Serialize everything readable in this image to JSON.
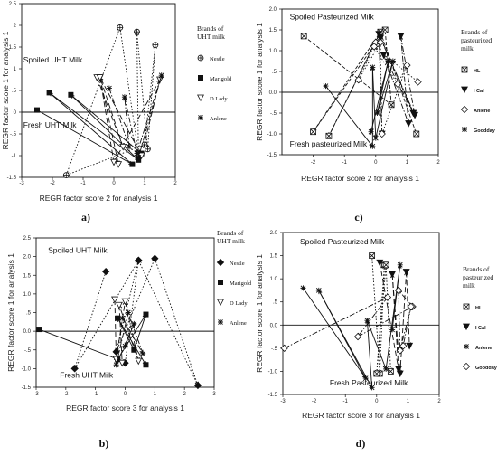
{
  "chart_data": [
    {
      "type": "scatter",
      "panel_label": "a)",
      "xlabel": "REGR factor score   2 for analysis   1",
      "ylabel": "REGR factor score   1 for analysis   1",
      "xlim": [
        -3,
        2
      ],
      "ylim": [
        -1.5,
        2.5
      ],
      "xticks": [
        -3,
        -2,
        -1,
        0,
        1,
        2
      ],
      "xtick_labels": [
        "-3",
        "-2",
        "-1",
        "0",
        "1",
        "2"
      ],
      "yticks": [
        -1.5,
        -1,
        -0.5,
        0,
        0.5,
        1,
        1.5,
        2,
        2.5
      ],
      "ytick_labels": [
        "-1.5",
        "-1",
        "-.5",
        "0",
        ".5",
        "1",
        "1.5",
        "2",
        "2.5"
      ],
      "annotations": [
        {
          "text": "Spoiled UHT Milk",
          "x": -2.95,
          "y": 1.15
        },
        {
          "text": "Fresh UHT Milk",
          "x": -2.95,
          "y": -0.35
        }
      ],
      "legend": {
        "title": "Brands of UHT milk",
        "title_lines": [
          "Brands of",
          "UHT milk"
        ],
        "entries": [
          {
            "name": "Nestle",
            "marker": "crossed-circle"
          },
          {
            "name": "Marigold",
            "marker": "filled-square"
          },
          {
            "name": "D Lady",
            "marker": "open-triangle-down"
          },
          {
            "name": "Anlene",
            "marker": "asterisk"
          }
        ]
      },
      "series": [
        {
          "name": "Nestle",
          "marker": "crossed-circle",
          "dash": "1.5,2",
          "points": [
            [
              0.2,
              1.95
            ],
            [
              0.8,
              -0.95
            ],
            [
              0.75,
              1.85
            ],
            [
              1.1,
              -0.85
            ],
            [
              1.35,
              1.55
            ],
            [
              1.0,
              -0.75
            ],
            [
              -1.55,
              -1.45
            ],
            [
              0.2,
              1.95
            ]
          ]
        },
        {
          "name": "Marigold",
          "marker": "filled-square",
          "dash": "none",
          "points": [
            [
              -2.5,
              0.05
            ],
            [
              0.6,
              -1.2
            ],
            [
              -2.1,
              0.45
            ],
            [
              0.8,
              -1.1
            ],
            [
              -1.4,
              0.4
            ],
            [
              0.9,
              -0.95
            ]
          ]
        },
        {
          "name": "D Lady",
          "marker": "open-triangle-down",
          "dash": "6,3",
          "points": [
            [
              -0.55,
              0.8
            ],
            [
              0.3,
              -0.8
            ],
            [
              -0.45,
              0.8
            ],
            [
              0.0,
              -1.15
            ],
            [
              1.5,
              0.75
            ],
            [
              0.9,
              -1.0
            ],
            [
              -0.45,
              0.8
            ],
            [
              0.15,
              -1.2
            ]
          ]
        },
        {
          "name": "Anlene",
          "marker": "asterisk",
          "dash": "6,2,1.5,2",
          "points": [
            [
              -0.15,
              0.55
            ],
            [
              0.5,
              -0.8
            ],
            [
              0.35,
              0.35
            ],
            [
              0.75,
              -0.95
            ],
            [
              1.55,
              0.85
            ],
            [
              0.8,
              -1.05
            ]
          ]
        }
      ]
    },
    {
      "type": "scatter",
      "panel_label": "c)",
      "xlabel": "REGR factor score   2 for analysis   1",
      "ylabel": "REGR factor score   1 for analysis   1",
      "xlim": [
        -3,
        2
      ],
      "ylim": [
        -1.5,
        2.0
      ],
      "xticks": [
        -2,
        -1,
        0,
        1,
        2
      ],
      "xtick_labels": [
        "-2",
        "-1",
        "0",
        "1",
        "2"
      ],
      "yticks": [
        -1.5,
        -1,
        -0.5,
        0,
        0.5,
        1,
        1.5,
        2
      ],
      "ytick_labels": [
        "-1.5",
        "-1.0",
        "-.5",
        "0.0",
        ".5",
        "1.0",
        "1.5",
        "2.0"
      ],
      "annotations": [
        {
          "text": "Spoiled Pasteurized Milk",
          "x": -2.75,
          "y": 1.75
        },
        {
          "text": "Fresh pasteurized Milk",
          "x": -2.75,
          "y": -1.3
        }
      ],
      "legend": {
        "title": "Brands of pasteurized milk",
        "title_lines": [
          "Brands of",
          "pasteurized",
          "milk"
        ],
        "entries": [
          {
            "name": "HL",
            "marker": "boxed-x"
          },
          {
            "name": "I Cal",
            "marker": "filled-triangle-down"
          },
          {
            "name": "Anlene",
            "marker": "open-diamond"
          },
          {
            "name": "Goodday",
            "marker": "asterisk"
          }
        ]
      },
      "series": [
        {
          "name": "HL",
          "marker": "boxed-x",
          "dash": "4,2",
          "points": [
            [
              -2.3,
              1.35
            ],
            [
              0.5,
              -0.3
            ],
            [
              0.3,
              1.5
            ],
            [
              -2.0,
              -0.95
            ],
            [
              0.15,
              1.45
            ],
            [
              -1.5,
              -1.05
            ],
            [
              0.15,
              1.45
            ],
            [
              1.3,
              -1.0
            ]
          ]
        },
        {
          "name": "I Cal",
          "marker": "filled-triangle-down",
          "dash": "6,2,1.5,2",
          "points": [
            [
              0.15,
              1.3
            ],
            [
              1.2,
              -0.5
            ],
            [
              0.25,
              0.9
            ],
            [
              1.05,
              -0.75
            ],
            [
              0.8,
              1.35
            ],
            [
              1.25,
              -0.55
            ],
            [
              0.1,
              1.4
            ],
            [
              0.2,
              -1.0
            ]
          ]
        },
        {
          "name": "Anlene",
          "marker": "open-diamond",
          "dash": "1.5,2",
          "points": [
            [
              0.0,
              1.2
            ],
            [
              -0.55,
              0.3
            ],
            [
              0.15,
              1.2
            ],
            [
              0.2,
              -1.0
            ],
            [
              1.0,
              0.65
            ],
            [
              0.7,
              0.2
            ],
            [
              -0.05,
              1.1
            ],
            [
              1.35,
              0.25
            ]
          ]
        },
        {
          "name": "Goodday",
          "marker": "asterisk",
          "dash": "none",
          "points": [
            [
              -1.6,
              0.15
            ],
            [
              -0.1,
              -1.3
            ],
            [
              -0.1,
              0.6
            ],
            [
              0.0,
              -1.1
            ],
            [
              0.55,
              0.75
            ],
            [
              0.05,
              -0.5
            ],
            [
              0.4,
              0.75
            ],
            [
              -0.15,
              -0.95
            ]
          ]
        }
      ]
    },
    {
      "type": "scatter",
      "panel_label": "b)",
      "xlabel": "REGR factor score   3 for analysis   1",
      "ylabel": "REGR factor score   1 for analysis   1",
      "xlim": [
        -3,
        3
      ],
      "ylim": [
        -1.5,
        2.5
      ],
      "xticks": [
        -3,
        -2,
        -1,
        0,
        1,
        2,
        3
      ],
      "xtick_labels": [
        "-3",
        "-2",
        "-1",
        "0",
        "1",
        "2",
        "3"
      ],
      "yticks": [
        -1.5,
        -1,
        -0.5,
        0,
        0.5,
        1,
        1.5,
        2,
        2.5
      ],
      "ytick_labels": [
        "-1.5",
        "-1.0",
        "-.5",
        "0.0",
        ".5",
        "1.0",
        "1.5",
        "2.0",
        "2.5"
      ],
      "annotations": [
        {
          "text": "Spoiled UHT Milk",
          "x": -2.6,
          "y": 2.1
        },
        {
          "text": "Fresh UHT Milk",
          "x": -2.2,
          "y": -1.25
        }
      ],
      "legend": {
        "title": "Brands of UHT milk",
        "title_lines": [
          "Brands of",
          "UHT milk"
        ],
        "entries": [
          {
            "name": "Nestle",
            "marker": "filled-diamond"
          },
          {
            "name": "Marigold",
            "marker": "filled-square"
          },
          {
            "name": "D Lady",
            "marker": "open-triangle-down"
          },
          {
            "name": "Anlene",
            "marker": "asterisk"
          }
        ]
      },
      "series": [
        {
          "name": "Nestle",
          "marker": "filled-diamond",
          "dash": "1.5,2",
          "points": [
            [
              -0.65,
              1.6
            ],
            [
              -1.7,
              -1.0
            ],
            [
              0.45,
              1.9
            ],
            [
              -0.3,
              -0.55
            ],
            [
              1.0,
              1.95
            ],
            [
              2.45,
              -1.45
            ],
            [
              0.45,
              1.9
            ],
            [
              0.0,
              -0.85
            ]
          ]
        },
        {
          "name": "Marigold",
          "marker": "filled-square",
          "dash": "none",
          "points": [
            [
              -2.9,
              0.05
            ],
            [
              -0.25,
              -0.75
            ],
            [
              0.7,
              0.45
            ],
            [
              0.3,
              -0.5
            ],
            [
              -0.25,
              0.35
            ],
            [
              0.7,
              -0.9
            ]
          ]
        },
        {
          "name": "D Lady",
          "marker": "open-triangle-down",
          "dash": "6,3",
          "points": [
            [
              -0.35,
              0.85
            ],
            [
              -0.3,
              -0.75
            ],
            [
              0.0,
              0.8
            ],
            [
              0.45,
              -0.8
            ],
            [
              -0.2,
              0.7
            ],
            [
              -0.1,
              -0.85
            ]
          ]
        },
        {
          "name": "Anlene",
          "marker": "asterisk",
          "dash": "6,2,1.5,2",
          "points": [
            [
              -0.1,
              0.35
            ],
            [
              0.6,
              -0.6
            ],
            [
              0.1,
              0.5
            ],
            [
              -0.3,
              -0.9
            ],
            [
              0.3,
              0.2
            ],
            [
              0.0,
              -0.4
            ]
          ]
        }
      ]
    },
    {
      "type": "scatter",
      "panel_label": "d)",
      "xlabel": "REGR factor score   3 for analysis   1",
      "ylabel": "REGR factor score   1 for analysis   1",
      "xlim": [
        -3,
        2
      ],
      "ylim": [
        -1.5,
        2.0
      ],
      "xticks": [
        -3,
        -2,
        -1,
        0,
        1,
        2
      ],
      "xtick_labels": [
        "-3",
        "-2",
        "-1",
        "0",
        "1",
        "2"
      ],
      "yticks": [
        -1.5,
        -1,
        -0.5,
        0,
        0.5,
        1,
        1.5,
        2
      ],
      "ytick_labels": [
        "-1.5",
        "-1.0",
        "-.5",
        "0.0",
        ".5",
        "1.0",
        "1.5",
        "2.0"
      ],
      "annotations": [
        {
          "text": "Spoiled Pasteurized Milk",
          "x": -2.45,
          "y": 1.75
        },
        {
          "text": "Fresh Pasteurized Milk",
          "x": -1.5,
          "y": -1.3
        }
      ],
      "legend": {
        "title": "Brands of pasteurized milk",
        "title_lines": [
          "Brands of",
          "pasteurized",
          "milk"
        ],
        "entries": [
          {
            "name": "HL",
            "marker": "boxed-x"
          },
          {
            "name": "I Cal",
            "marker": "filled-triangle-down"
          },
          {
            "name": "Anlene",
            "marker": "asterisk"
          },
          {
            "name": "Goodday",
            "marker": "open-diamond"
          }
        ]
      },
      "series": [
        {
          "name": "HL",
          "marker": "boxed-x",
          "dash": "1.5,2",
          "points": [
            [
              -0.15,
              1.5
            ],
            [
              0.1,
              -1.05
            ],
            [
              0.25,
              1.3
            ],
            [
              0.0,
              -1.05
            ],
            [
              0.3,
              1.3
            ],
            [
              0.45,
              -1.0
            ]
          ]
        },
        {
          "name": "I Cal",
          "marker": "filled-triangle-down",
          "dash": "6,3",
          "points": [
            [
              0.1,
              1.35
            ],
            [
              0.7,
              -0.95
            ],
            [
              0.5,
              1.1
            ],
            [
              0.75,
              -1.05
            ],
            [
              0.95,
              1.15
            ],
            [
              1.05,
              -0.45
            ]
          ]
        },
        {
          "name": "Anlene",
          "marker": "asterisk",
          "dash": "none",
          "points": [
            [
              -2.35,
              0.8
            ],
            [
              -0.35,
              -1.15
            ],
            [
              -1.85,
              0.75
            ],
            [
              -0.15,
              -1.35
            ],
            [
              -0.3,
              0.1
            ],
            [
              0.3,
              -0.95
            ],
            [
              0.75,
              1.3
            ],
            [
              0.5,
              -0.1
            ]
          ]
        },
        {
          "name": "Goodday",
          "marker": "open-diamond",
          "dash": "6,2,1.5,2",
          "points": [
            [
              -2.95,
              -0.5
            ],
            [
              0.35,
              0.6
            ],
            [
              -0.6,
              -0.25
            ],
            [
              1.15,
              0.4
            ],
            [
              0.7,
              0.75
            ],
            [
              0.75,
              -0.55
            ],
            [
              1.1,
              0.4
            ],
            [
              0.85,
              -0.45
            ]
          ]
        }
      ]
    }
  ]
}
